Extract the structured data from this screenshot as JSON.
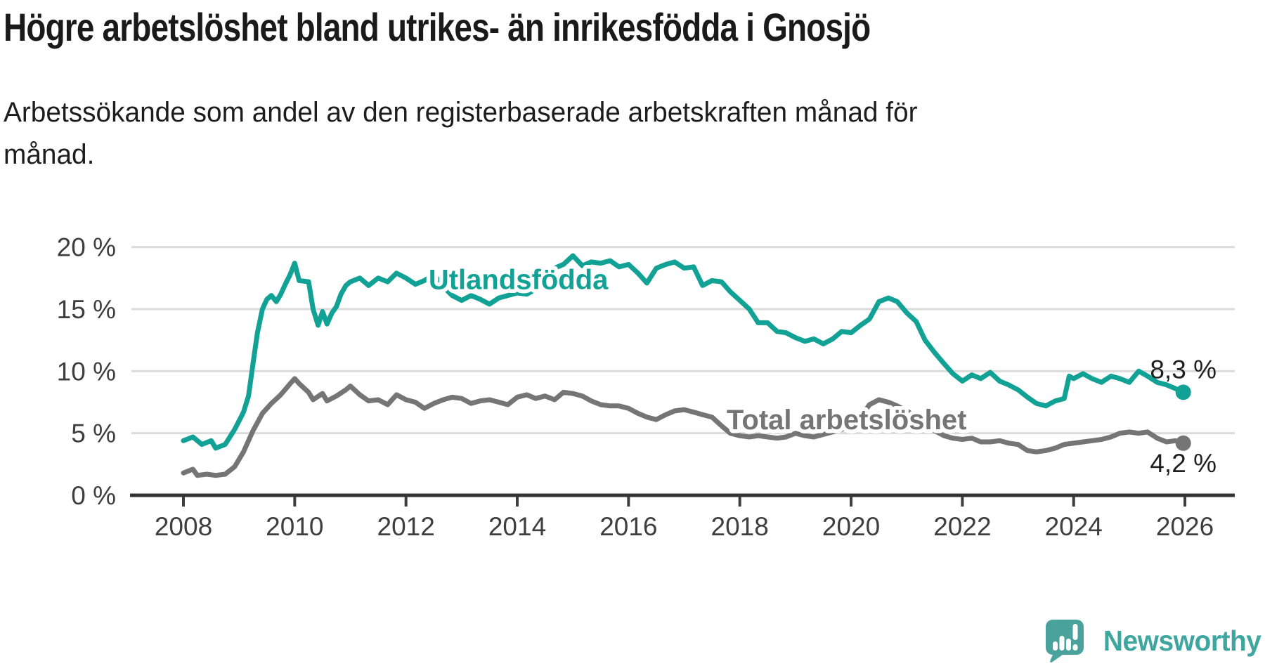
{
  "title": "Högre arbetslöshet bland utrikes- än inrikesfödda i Gnosjö",
  "subtitle_line1": "Arbetssökande som andel av den registerbaserade arbetskraften månad för",
  "subtitle_line2": "månad.",
  "footer": {
    "brand": "Newsworthy"
  },
  "colors": {
    "teal": "#12a295",
    "gray": "#757575",
    "grid": "#dbdbdb",
    "axis": "#333333",
    "tick_text": "#3e3e3e",
    "annotation_text": "#1f1f1f",
    "logo_teal": "#4aa29d"
  },
  "chart_data": {
    "type": "line",
    "title": "Högre arbetslöshet bland utrikes- än inrikesfödda i Gnosjö",
    "subtitle": "Arbetssökande som andel av den registerbaserade arbetskraften månad för månad.",
    "xlabel": "",
    "ylabel": "",
    "grid": true,
    "x_axis": {
      "ticks": [
        2008,
        2010,
        2012,
        2014,
        2016,
        2018,
        2020,
        2022,
        2024,
        2026
      ],
      "range": [
        2007.9,
        2026.9
      ]
    },
    "y_axis": {
      "tick_values": [
        0,
        5,
        10,
        15,
        20
      ],
      "tick_labels": [
        "0 %",
        "5 %",
        "10 %",
        "15 %",
        "20 %"
      ],
      "range": [
        0,
        21.3
      ]
    },
    "series": [
      {
        "name": "Utlandsfödda",
        "color": "#12a295",
        "end_label": "8,3 %",
        "end_value": 8.3,
        "end_label_side": "above",
        "label": {
          "text": "Utlandsfödda",
          "x": 2014.02,
          "y": 17.4
        },
        "points": [
          [
            2008.0,
            4.4
          ],
          [
            2008.17,
            4.7
          ],
          [
            2008.33,
            4.1
          ],
          [
            2008.5,
            4.4
          ],
          [
            2008.58,
            3.8
          ],
          [
            2008.75,
            4.1
          ],
          [
            2008.92,
            5.3
          ],
          [
            2009.0,
            6.0
          ],
          [
            2009.08,
            6.7
          ],
          [
            2009.17,
            8.0
          ],
          [
            2009.25,
            10.6
          ],
          [
            2009.33,
            13.1
          ],
          [
            2009.42,
            15.0
          ],
          [
            2009.5,
            15.8
          ],
          [
            2009.58,
            16.1
          ],
          [
            2009.67,
            15.6
          ],
          [
            2009.75,
            16.2
          ],
          [
            2009.83,
            17.0
          ],
          [
            2009.92,
            17.8
          ],
          [
            2010.0,
            18.7
          ],
          [
            2010.08,
            17.3
          ],
          [
            2010.25,
            17.2
          ],
          [
            2010.33,
            15.0
          ],
          [
            2010.42,
            13.7
          ],
          [
            2010.5,
            14.8
          ],
          [
            2010.58,
            13.8
          ],
          [
            2010.67,
            14.7
          ],
          [
            2010.75,
            15.2
          ],
          [
            2010.83,
            16.2
          ],
          [
            2010.92,
            16.9
          ],
          [
            2011.0,
            17.2
          ],
          [
            2011.17,
            17.5
          ],
          [
            2011.33,
            16.9
          ],
          [
            2011.5,
            17.5
          ],
          [
            2011.67,
            17.2
          ],
          [
            2011.83,
            17.9
          ],
          [
            2012.0,
            17.5
          ],
          [
            2012.17,
            17.0
          ],
          [
            2012.33,
            17.3
          ],
          [
            2012.5,
            17.8
          ],
          [
            2012.67,
            16.8
          ],
          [
            2012.83,
            16.1
          ],
          [
            2013.0,
            15.7
          ],
          [
            2013.17,
            16.1
          ],
          [
            2013.33,
            15.8
          ],
          [
            2013.5,
            15.4
          ],
          [
            2013.67,
            15.9
          ],
          [
            2013.83,
            16.1
          ],
          [
            2014.0,
            16.3
          ],
          [
            2014.17,
            16.2
          ],
          [
            2014.33,
            16.6
          ],
          [
            2014.5,
            17.4
          ],
          [
            2014.67,
            18.3
          ],
          [
            2014.83,
            18.6
          ],
          [
            2015.0,
            19.3
          ],
          [
            2015.17,
            18.5
          ],
          [
            2015.33,
            18.8
          ],
          [
            2015.5,
            18.7
          ],
          [
            2015.67,
            18.9
          ],
          [
            2015.83,
            18.4
          ],
          [
            2016.0,
            18.6
          ],
          [
            2016.17,
            17.9
          ],
          [
            2016.33,
            17.1
          ],
          [
            2016.5,
            18.3
          ],
          [
            2016.67,
            18.6
          ],
          [
            2016.83,
            18.8
          ],
          [
            2017.0,
            18.3
          ],
          [
            2017.17,
            18.4
          ],
          [
            2017.33,
            16.9
          ],
          [
            2017.5,
            17.3
          ],
          [
            2017.67,
            17.2
          ],
          [
            2017.83,
            16.4
          ],
          [
            2018.0,
            15.7
          ],
          [
            2018.17,
            15.0
          ],
          [
            2018.33,
            13.9
          ],
          [
            2018.5,
            13.9
          ],
          [
            2018.67,
            13.2
          ],
          [
            2018.83,
            13.1
          ],
          [
            2019.0,
            12.7
          ],
          [
            2019.17,
            12.4
          ],
          [
            2019.33,
            12.6
          ],
          [
            2019.5,
            12.2
          ],
          [
            2019.67,
            12.6
          ],
          [
            2019.83,
            13.2
          ],
          [
            2020.0,
            13.1
          ],
          [
            2020.17,
            13.7
          ],
          [
            2020.33,
            14.2
          ],
          [
            2020.5,
            15.6
          ],
          [
            2020.67,
            15.9
          ],
          [
            2020.83,
            15.6
          ],
          [
            2021.0,
            14.7
          ],
          [
            2021.17,
            14.0
          ],
          [
            2021.33,
            12.5
          ],
          [
            2021.5,
            11.5
          ],
          [
            2021.67,
            10.6
          ],
          [
            2021.83,
            9.8
          ],
          [
            2022.0,
            9.2
          ],
          [
            2022.17,
            9.7
          ],
          [
            2022.33,
            9.4
          ],
          [
            2022.5,
            9.9
          ],
          [
            2022.67,
            9.2
          ],
          [
            2022.83,
            8.9
          ],
          [
            2023.0,
            8.5
          ],
          [
            2023.17,
            7.9
          ],
          [
            2023.33,
            7.4
          ],
          [
            2023.5,
            7.2
          ],
          [
            2023.67,
            7.6
          ],
          [
            2023.83,
            7.8
          ],
          [
            2023.92,
            9.6
          ],
          [
            2024.0,
            9.4
          ],
          [
            2024.17,
            9.8
          ],
          [
            2024.33,
            9.4
          ],
          [
            2024.5,
            9.1
          ],
          [
            2024.67,
            9.6
          ],
          [
            2024.83,
            9.4
          ],
          [
            2025.0,
            9.1
          ],
          [
            2025.17,
            10.0
          ],
          [
            2025.33,
            9.6
          ],
          [
            2025.5,
            9.1
          ],
          [
            2025.67,
            8.9
          ],
          [
            2025.83,
            8.6
          ],
          [
            2025.97,
            8.3
          ]
        ]
      },
      {
        "name": "Total arbetslöshet",
        "color": "#757575",
        "end_label": "4,2 %",
        "end_value": 4.2,
        "end_label_side": "below",
        "label": {
          "text": "Total arbetslöshet",
          "x": 2019.92,
          "y": 6.1
        },
        "points": [
          [
            2008.0,
            1.8
          ],
          [
            2008.17,
            2.1
          ],
          [
            2008.25,
            1.6
          ],
          [
            2008.42,
            1.7
          ],
          [
            2008.58,
            1.6
          ],
          [
            2008.75,
            1.7
          ],
          [
            2008.92,
            2.3
          ],
          [
            2009.08,
            3.5
          ],
          [
            2009.25,
            5.2
          ],
          [
            2009.42,
            6.6
          ],
          [
            2009.58,
            7.4
          ],
          [
            2009.75,
            8.1
          ],
          [
            2009.92,
            9.0
          ],
          [
            2010.0,
            9.4
          ],
          [
            2010.08,
            9.0
          ],
          [
            2010.25,
            8.3
          ],
          [
            2010.33,
            7.7
          ],
          [
            2010.5,
            8.2
          ],
          [
            2010.58,
            7.6
          ],
          [
            2010.75,
            8.0
          ],
          [
            2010.92,
            8.5
          ],
          [
            2011.0,
            8.8
          ],
          [
            2011.17,
            8.1
          ],
          [
            2011.33,
            7.6
          ],
          [
            2011.5,
            7.7
          ],
          [
            2011.67,
            7.3
          ],
          [
            2011.83,
            8.1
          ],
          [
            2012.0,
            7.7
          ],
          [
            2012.17,
            7.5
          ],
          [
            2012.33,
            7.0
          ],
          [
            2012.5,
            7.4
          ],
          [
            2012.67,
            7.7
          ],
          [
            2012.83,
            7.9
          ],
          [
            2013.0,
            7.8
          ],
          [
            2013.17,
            7.4
          ],
          [
            2013.33,
            7.6
          ],
          [
            2013.5,
            7.7
          ],
          [
            2013.67,
            7.5
          ],
          [
            2013.83,
            7.3
          ],
          [
            2014.0,
            7.9
          ],
          [
            2014.17,
            8.1
          ],
          [
            2014.33,
            7.8
          ],
          [
            2014.5,
            8.0
          ],
          [
            2014.67,
            7.7
          ],
          [
            2014.83,
            8.3
          ],
          [
            2015.0,
            8.2
          ],
          [
            2015.17,
            8.0
          ],
          [
            2015.33,
            7.6
          ],
          [
            2015.5,
            7.3
          ],
          [
            2015.67,
            7.2
          ],
          [
            2015.83,
            7.2
          ],
          [
            2016.0,
            7.0
          ],
          [
            2016.17,
            6.6
          ],
          [
            2016.33,
            6.3
          ],
          [
            2016.5,
            6.1
          ],
          [
            2016.67,
            6.5
          ],
          [
            2016.83,
            6.8
          ],
          [
            2017.0,
            6.9
          ],
          [
            2017.17,
            6.7
          ],
          [
            2017.33,
            6.5
          ],
          [
            2017.5,
            6.3
          ],
          [
            2017.67,
            5.6
          ],
          [
            2017.83,
            5.0
          ],
          [
            2018.0,
            4.8
          ],
          [
            2018.17,
            4.7
          ],
          [
            2018.33,
            4.8
          ],
          [
            2018.5,
            4.7
          ],
          [
            2018.67,
            4.6
          ],
          [
            2018.83,
            4.7
          ],
          [
            2019.0,
            5.0
          ],
          [
            2019.17,
            4.8
          ],
          [
            2019.33,
            4.7
          ],
          [
            2019.5,
            4.9
          ],
          [
            2019.67,
            5.1
          ],
          [
            2019.83,
            5.3
          ],
          [
            2020.0,
            5.6
          ],
          [
            2020.17,
            6.3
          ],
          [
            2020.33,
            7.3
          ],
          [
            2020.5,
            7.7
          ],
          [
            2020.67,
            7.5
          ],
          [
            2020.83,
            7.2
          ],
          [
            2021.0,
            6.8
          ],
          [
            2021.17,
            6.3
          ],
          [
            2021.33,
            5.8
          ],
          [
            2021.5,
            5.2
          ],
          [
            2021.67,
            4.8
          ],
          [
            2021.83,
            4.6
          ],
          [
            2022.0,
            4.5
          ],
          [
            2022.17,
            4.6
          ],
          [
            2022.33,
            4.3
          ],
          [
            2022.5,
            4.3
          ],
          [
            2022.67,
            4.4
          ],
          [
            2022.83,
            4.2
          ],
          [
            2023.0,
            4.1
          ],
          [
            2023.17,
            3.6
          ],
          [
            2023.33,
            3.5
          ],
          [
            2023.5,
            3.6
          ],
          [
            2023.67,
            3.8
          ],
          [
            2023.83,
            4.1
          ],
          [
            2024.0,
            4.2
          ],
          [
            2024.17,
            4.3
          ],
          [
            2024.33,
            4.4
          ],
          [
            2024.5,
            4.5
          ],
          [
            2024.67,
            4.7
          ],
          [
            2024.83,
            5.0
          ],
          [
            2025.0,
            5.1
          ],
          [
            2025.17,
            5.0
          ],
          [
            2025.33,
            5.1
          ],
          [
            2025.5,
            4.6
          ],
          [
            2025.67,
            4.3
          ],
          [
            2025.83,
            4.4
          ],
          [
            2025.97,
            4.2
          ]
        ]
      }
    ]
  }
}
